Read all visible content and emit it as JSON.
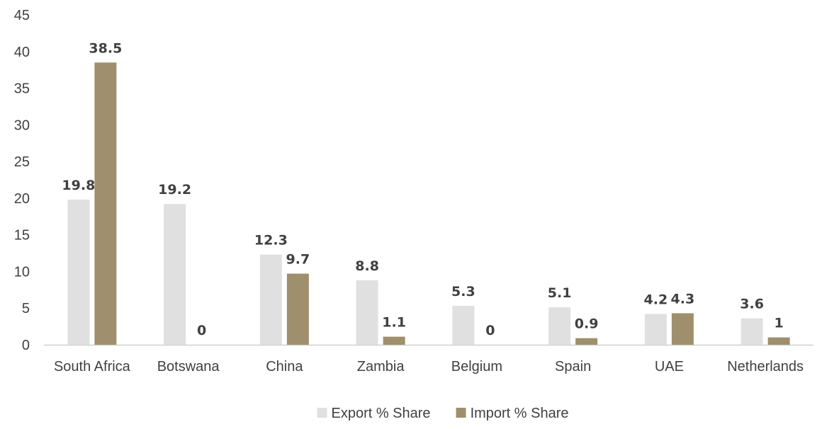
{
  "chart_data": {
    "type": "bar",
    "categories": [
      "South Africa",
      "Botswana",
      "China",
      "Zambia",
      "Belgium",
      "Spain",
      "UAE",
      "Netherlands"
    ],
    "series": [
      {
        "name": "Export % Share",
        "values": [
          19.8,
          19.2,
          12.3,
          8.8,
          5.3,
          5.1,
          4.2,
          3.6
        ],
        "color": "#e0e0e0"
      },
      {
        "name": "Import % Share",
        "values": [
          38.5,
          0,
          9.7,
          1.1,
          0,
          0.9,
          4.3,
          1
        ],
        "color": "#a08f6c"
      }
    ],
    "ylim": [
      0,
      45
    ],
    "yticks": [
      0,
      5,
      10,
      15,
      20,
      25,
      30,
      35,
      40,
      45
    ],
    "grid": false,
    "legend_position": "bottom"
  }
}
